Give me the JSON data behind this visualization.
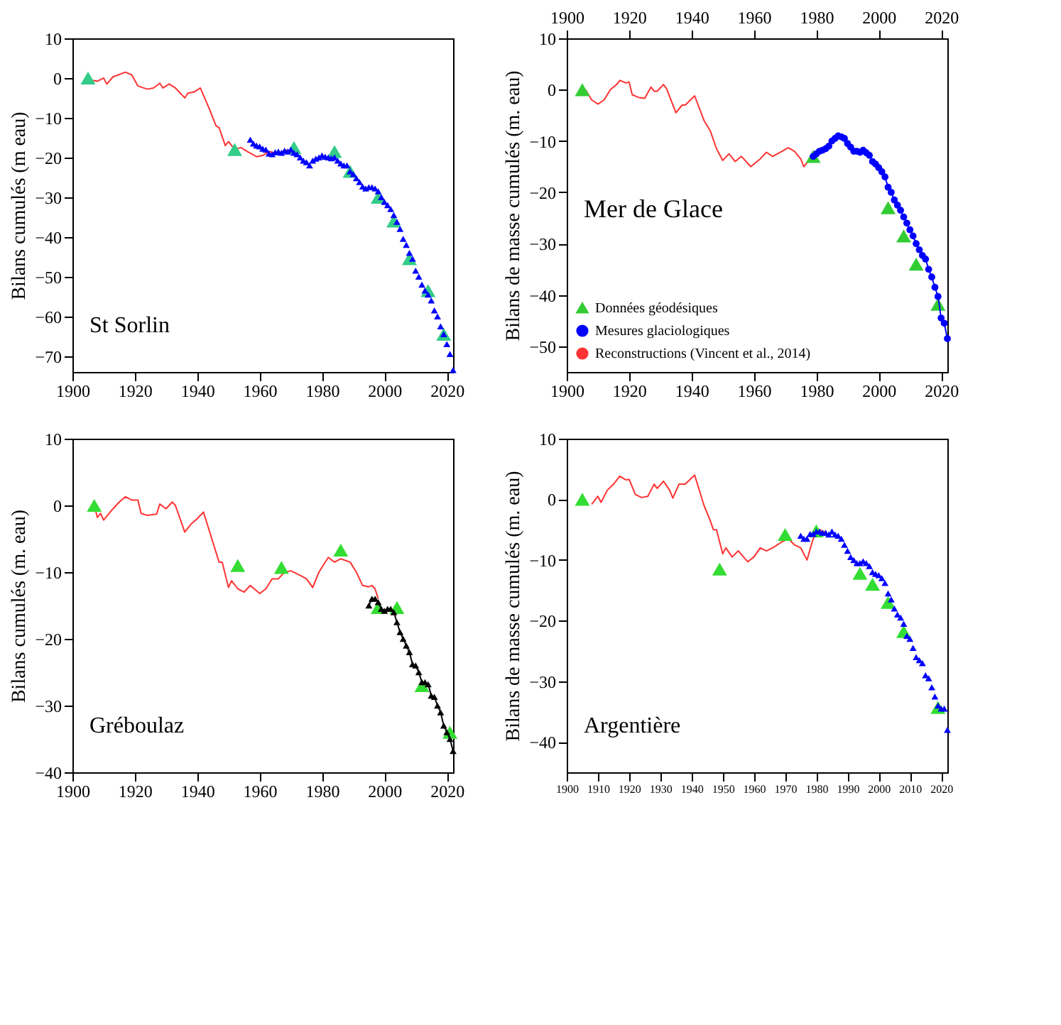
{
  "chart_data": [
    {
      "type": "line",
      "ylabel": "Bilans cumulés (m eau)",
      "annotations": [
        "St Sorlin"
      ],
      "xlim": [
        1900,
        2022
      ],
      "xticks": [
        1900,
        1920,
        1940,
        1960,
        1980,
        2000,
        2020
      ],
      "ylim": [
        -74,
        10
      ],
      "yticks": [
        -70,
        -60,
        -50,
        -40,
        -30,
        -20,
        -10,
        0,
        10
      ],
      "grid": false,
      "legend": false,
      "series": [
        {
          "color": "#33cc88",
          "type": "scatter",
          "marker": "triangle",
          "x": [
            1905,
            1952,
            1971,
            1984,
            1989,
            1998,
            2003,
            2008,
            2014,
            2019
          ],
          "values": [
            0,
            -18,
            -17.5,
            -18.5,
            -23.5,
            -30,
            -36,
            -45.5,
            -53.5,
            -64.5
          ]
        },
        {
          "color": "#0000ff",
          "type": "scatter",
          "marker": "triangle",
          "x": [
            1957,
            1958,
            1959,
            1960,
            1961,
            1962,
            1963,
            1964,
            1965,
            1966,
            1967,
            1968,
            1969,
            1970,
            1971,
            1972,
            1973,
            1974,
            1975,
            1976,
            1977,
            1978,
            1979,
            1980,
            1981,
            1982,
            1983,
            1984,
            1985,
            1986,
            1987,
            1988,
            1989,
            1990,
            1991,
            1992,
            1993,
            1994,
            1995,
            1996,
            1997,
            1998,
            1999,
            2000,
            2001,
            2002,
            2003,
            2004,
            2005,
            2006,
            2007,
            2008,
            2009,
            2010,
            2011,
            2012,
            2013,
            2014,
            2015,
            2016,
            2017,
            2018,
            2019,
            2020,
            2021,
            2022
          ],
          "values": [
            -15.5,
            -16.5,
            -17,
            -17.2,
            -17.8,
            -18,
            -19,
            -19.2,
            -18.7,
            -18.5,
            -18.8,
            -18.3,
            -18.5,
            -18,
            -18.8,
            -19.2,
            -20,
            -20.8,
            -21.2,
            -22,
            -20.8,
            -20.3,
            -20,
            -19.5,
            -19.8,
            -20,
            -20.2,
            -20,
            -20.8,
            -21.5,
            -22,
            -22,
            -23.5,
            -24.2,
            -25.2,
            -26.2,
            -27.3,
            -27.8,
            -27.5,
            -27.5,
            -27.8,
            -28.5,
            -30,
            -31.2,
            -32,
            -33,
            -34.5,
            -36.2,
            -38,
            -40.5,
            -42,
            -44,
            -45.5,
            -48.5,
            -50,
            -52,
            -53.5,
            -54.5,
            -56,
            -58.5,
            -60,
            -62.5,
            -64.5,
            -67,
            -69.5,
            -73.5
          ]
        },
        {
          "color": "#ff3333",
          "marker": "none",
          "x": [
            1906,
            1908,
            1910,
            1911,
            1913,
            1917,
            1919,
            1921,
            1924,
            1926,
            1928,
            1929,
            1931,
            1933,
            1936,
            1937,
            1939,
            1941,
            1944,
            1946,
            1947,
            1949,
            1950,
            1952,
            1954,
            1956,
            1959,
            1961,
            1963,
            1966,
            1968,
            1971
          ],
          "values": [
            -0.5,
            -0.8,
            0,
            -1.5,
            0.3,
            1.5,
            0.8,
            -2,
            -2.8,
            -2.5,
            -1.3,
            -2.5,
            -1.5,
            -2.5,
            -5,
            -3.8,
            -3.5,
            -2.5,
            -8,
            -12,
            -12.5,
            -17,
            -16,
            -18,
            -17.5,
            -18.5,
            -19.8,
            -19.5,
            -18.5,
            -19,
            -18.2,
            -18.2
          ]
        }
      ]
    },
    {
      "type": "line",
      "ylabel": "Bilans de masse cumulés (m. eau)",
      "annotations": [
        "Mer de Glace"
      ],
      "xlim": [
        1900,
        2022
      ],
      "xticks": [
        1900,
        1920,
        1940,
        1960,
        1980,
        2000,
        2020
      ],
      "x2lim": [
        1900,
        2022
      ],
      "x2ticks": [
        1900,
        1920,
        1940,
        1960,
        1980,
        2000,
        2020
      ],
      "ylim": [
        -55,
        10
      ],
      "yticks": [
        -50,
        -40,
        -30,
        -20,
        -10,
        0,
        10
      ],
      "grid": false,
      "legend": "bottom left",
      "series": [
        {
          "name": "Données géodésiques",
          "color": "#33cc33",
          "type": "scatter",
          "marker": "triangle",
          "x": [
            1905,
            1979,
            2003,
            2008,
            2012,
            2019
          ],
          "values": [
            0,
            -13,
            -23,
            -28.5,
            -34,
            -41.8
          ]
        },
        {
          "name": "Mesures glaciologiques",
          "color": "#0000ff",
          "marker": "circle",
          "x": [
            1979,
            1980,
            1981,
            1982,
            1983,
            1984,
            1985,
            1986,
            1987,
            1988,
            1989,
            1990,
            1991,
            1992,
            1993,
            1994,
            1995,
            1996,
            1997,
            1998,
            1999,
            2000,
            2001,
            2002,
            2003,
            2004,
            2005,
            2006,
            2007,
            2008,
            2009,
            2010,
            2011,
            2012,
            2013,
            2014,
            2015,
            2016,
            2017,
            2018,
            2019,
            2020,
            2021,
            2022
          ],
          "values": [
            -13,
            -12.5,
            -12,
            -11.8,
            -11.5,
            -11,
            -10,
            -9.5,
            -9,
            -9.2,
            -9.5,
            -10.5,
            -11.2,
            -12,
            -12,
            -12.2,
            -11.8,
            -12.3,
            -12.8,
            -14,
            -14.5,
            -15.2,
            -16,
            -17,
            -19,
            -20,
            -21.5,
            -22.5,
            -23.5,
            -24.8,
            -26,
            -27.3,
            -28.5,
            -30,
            -31.2,
            -32.3,
            -33,
            -35,
            -36.5,
            -38.5,
            -40.3,
            -44.5,
            -45.5,
            -48.5
          ]
        },
        {
          "name": "Reconstructions (Vincent et al., 2014)",
          "color": "#ff3333",
          "marker": "none",
          "x": [
            1906,
            1908,
            1910,
            1912,
            1914,
            1916,
            1917,
            1919,
            1920,
            1921,
            1923,
            1925,
            1927,
            1928,
            1929,
            1931,
            1932,
            1935,
            1937,
            1938,
            1941,
            1944,
            1946,
            1948,
            1950,
            1952,
            1954,
            1956,
            1959,
            1962,
            1964,
            1966,
            1969,
            1971,
            1973,
            1975,
            1976,
            1978
          ],
          "values": [
            0,
            -2,
            -2.8,
            -2,
            0,
            1,
            1.8,
            1.3,
            1.5,
            -1,
            -1.5,
            -1.7,
            0.5,
            -0.3,
            -0.3,
            1,
            0.2,
            -4.5,
            -3,
            -3,
            -1.2,
            -6,
            -8,
            -11.5,
            -13.8,
            -12.5,
            -14,
            -13,
            -15,
            -13.5,
            -12.2,
            -13,
            -12,
            -11.3,
            -12,
            -13.5,
            -15,
            -13.5
          ]
        }
      ]
    },
    {
      "type": "line",
      "ylabel": "Bilans cumulés (m. eau)",
      "annotations": [
        "Gréboulaz"
      ],
      "xlim": [
        1900,
        2022
      ],
      "xticks": [
        1900,
        1920,
        1940,
        1960,
        1980,
        2000,
        2020
      ],
      "ylim": [
        -40,
        10
      ],
      "yticks": [
        -40,
        -30,
        -20,
        -10,
        0,
        10
      ],
      "grid": false,
      "legend": false,
      "series": [
        {
          "color": "#33dd33",
          "type": "scatter",
          "marker": "triangle",
          "x": [
            1907,
            1953,
            1967,
            1986,
            1998,
            2004,
            2012,
            2021
          ],
          "values": [
            0,
            -9,
            -9.3,
            -6.7,
            -15.3,
            -15.3,
            -27,
            -34
          ]
        },
        {
          "color": "#000000",
          "marker": "triangle",
          "x": [
            1995,
            1996,
            1997,
            1998,
            1999,
            2000,
            2001,
            2002,
            2003,
            2004,
            2005,
            2006,
            2007,
            2008,
            2009,
            2010,
            2011,
            2012,
            2013,
            2014,
            2015,
            2016,
            2017,
            2018,
            2019,
            2020,
            2021,
            2022
          ],
          "values": [
            -15,
            -14,
            -14,
            -14.5,
            -15.5,
            -15.8,
            -15.5,
            -15.5,
            -16,
            -17.5,
            -19,
            -20,
            -21,
            -22,
            -23.8,
            -24,
            -25,
            -26.5,
            -26.5,
            -26.8,
            -28.5,
            -28.7,
            -30,
            -31,
            -33,
            -34,
            -35,
            -36.8
          ]
        },
        {
          "color": "#ff3333",
          "marker": "none",
          "x": [
            1907,
            1908,
            1909,
            1910,
            1913,
            1915,
            1917,
            1919,
            1921,
            1922,
            1924,
            1927,
            1928,
            1930,
            1932,
            1933,
            1936,
            1938,
            1940,
            1942,
            1945,
            1947,
            1948,
            1950,
            1951,
            1953,
            1955,
            1957,
            1960,
            1962,
            1964,
            1966,
            1968,
            1970,
            1973,
            1975,
            1977,
            1979,
            1982,
            1984,
            1986,
            1989,
            1991,
            1993,
            1995,
            1996,
            1997,
            1998
          ],
          "values": [
            0,
            -1.8,
            -1.2,
            -2.2,
            -0.5,
            0.5,
            1.3,
            0.8,
            0.8,
            -1.2,
            -1.5,
            -1.3,
            0.2,
            -0.5,
            0.5,
            0,
            -4,
            -2.8,
            -2,
            -1,
            -5.5,
            -8.5,
            -8.5,
            -12.3,
            -11.3,
            -12.5,
            -13,
            -12,
            -13.2,
            -12.5,
            -11,
            -11,
            -10,
            -9.8,
            -10.5,
            -11,
            -12.3,
            -10,
            -7.8,
            -8.5,
            -8,
            -8.5,
            -10,
            -12,
            -12.2,
            -12,
            -12.5,
            -14
          ]
        }
      ]
    },
    {
      "type": "line",
      "ylabel": "Bilans de masse cumulés (m. eau)",
      "annotations": [
        "Argentière"
      ],
      "xlim": [
        1900,
        2022
      ],
      "xticks": [
        1900,
        1910,
        1920,
        1930,
        1940,
        1950,
        1960,
        1970,
        1980,
        1990,
        2000,
        2010,
        2020
      ],
      "ylim": [
        -45,
        10
      ],
      "yticks": [
        -40,
        -30,
        -20,
        -10,
        0,
        10
      ],
      "grid": false,
      "legend": false,
      "series": [
        {
          "color": "#33dd33",
          "type": "scatter",
          "marker": "triangle",
          "x": [
            1905,
            1949,
            1970,
            1980,
            1994,
            1998,
            2003,
            2008,
            2019
          ],
          "values": [
            0,
            -11.5,
            -5.8,
            -5.2,
            -12.2,
            -14,
            -17,
            -21.8,
            -34.3
          ]
        },
        {
          "color": "#0000ff",
          "type": "scatter",
          "marker": "triangle",
          "x": [
            1975,
            1976,
            1977,
            1978,
            1979,
            1980,
            1981,
            1982,
            1983,
            1984,
            1985,
            1986,
            1987,
            1988,
            1989,
            1990,
            1991,
            1992,
            1993,
            1994,
            1995,
            1996,
            1997,
            1998,
            1999,
            2000,
            2001,
            2002,
            2003,
            2004,
            2005,
            2006,
            2007,
            2008,
            2009,
            2010,
            2011,
            2012,
            2013,
            2014,
            2015,
            2016,
            2017,
            2018,
            2019,
            2020,
            2021,
            2022
          ],
          "values": [
            -6,
            -6.5,
            -6.5,
            -5.7,
            -5.7,
            -5.3,
            -5.3,
            -5.5,
            -5.5,
            -5.8,
            -5.3,
            -5.8,
            -6,
            -6.5,
            -7.5,
            -8.5,
            -9.5,
            -10,
            -10.5,
            -10.5,
            -10.2,
            -10.5,
            -11,
            -12,
            -12.3,
            -12.5,
            -13,
            -13.8,
            -15.5,
            -16.5,
            -18,
            -19,
            -19.5,
            -20.5,
            -22.5,
            -23,
            -24.5,
            -26,
            -26.5,
            -27,
            -29,
            -29.5,
            -31,
            -32.5,
            -34,
            -34.5,
            -34.5,
            -38
          ]
        },
        {
          "color": "#ff3333",
          "marker": "none",
          "x": [
            1908,
            1910,
            1911,
            1913,
            1915,
            1917,
            1919,
            1920,
            1922,
            1924,
            1926,
            1928,
            1929,
            1931,
            1933,
            1934,
            1936,
            1938,
            1941,
            1944,
            1946,
            1947,
            1948,
            1950,
            1951,
            1953,
            1955,
            1958,
            1960,
            1962,
            1964,
            1966,
            1969,
            1971,
            1973,
            1975,
            1977,
            1979,
            1981,
            1983
          ],
          "values": [
            -0.8,
            0.5,
            -0.5,
            1.5,
            2.5,
            3.8,
            3.2,
            3.3,
            0.8,
            0.3,
            0.5,
            2.5,
            1.8,
            3,
            1.5,
            0.2,
            2.5,
            2.5,
            4,
            -1,
            -3.5,
            -5,
            -5,
            -9,
            -8,
            -9.5,
            -8.5,
            -10.3,
            -9.5,
            -8,
            -8.5,
            -8,
            -7,
            -6.5,
            -7.5,
            -8,
            -10,
            -6.5,
            -5,
            -5.5
          ]
        }
      ]
    }
  ]
}
